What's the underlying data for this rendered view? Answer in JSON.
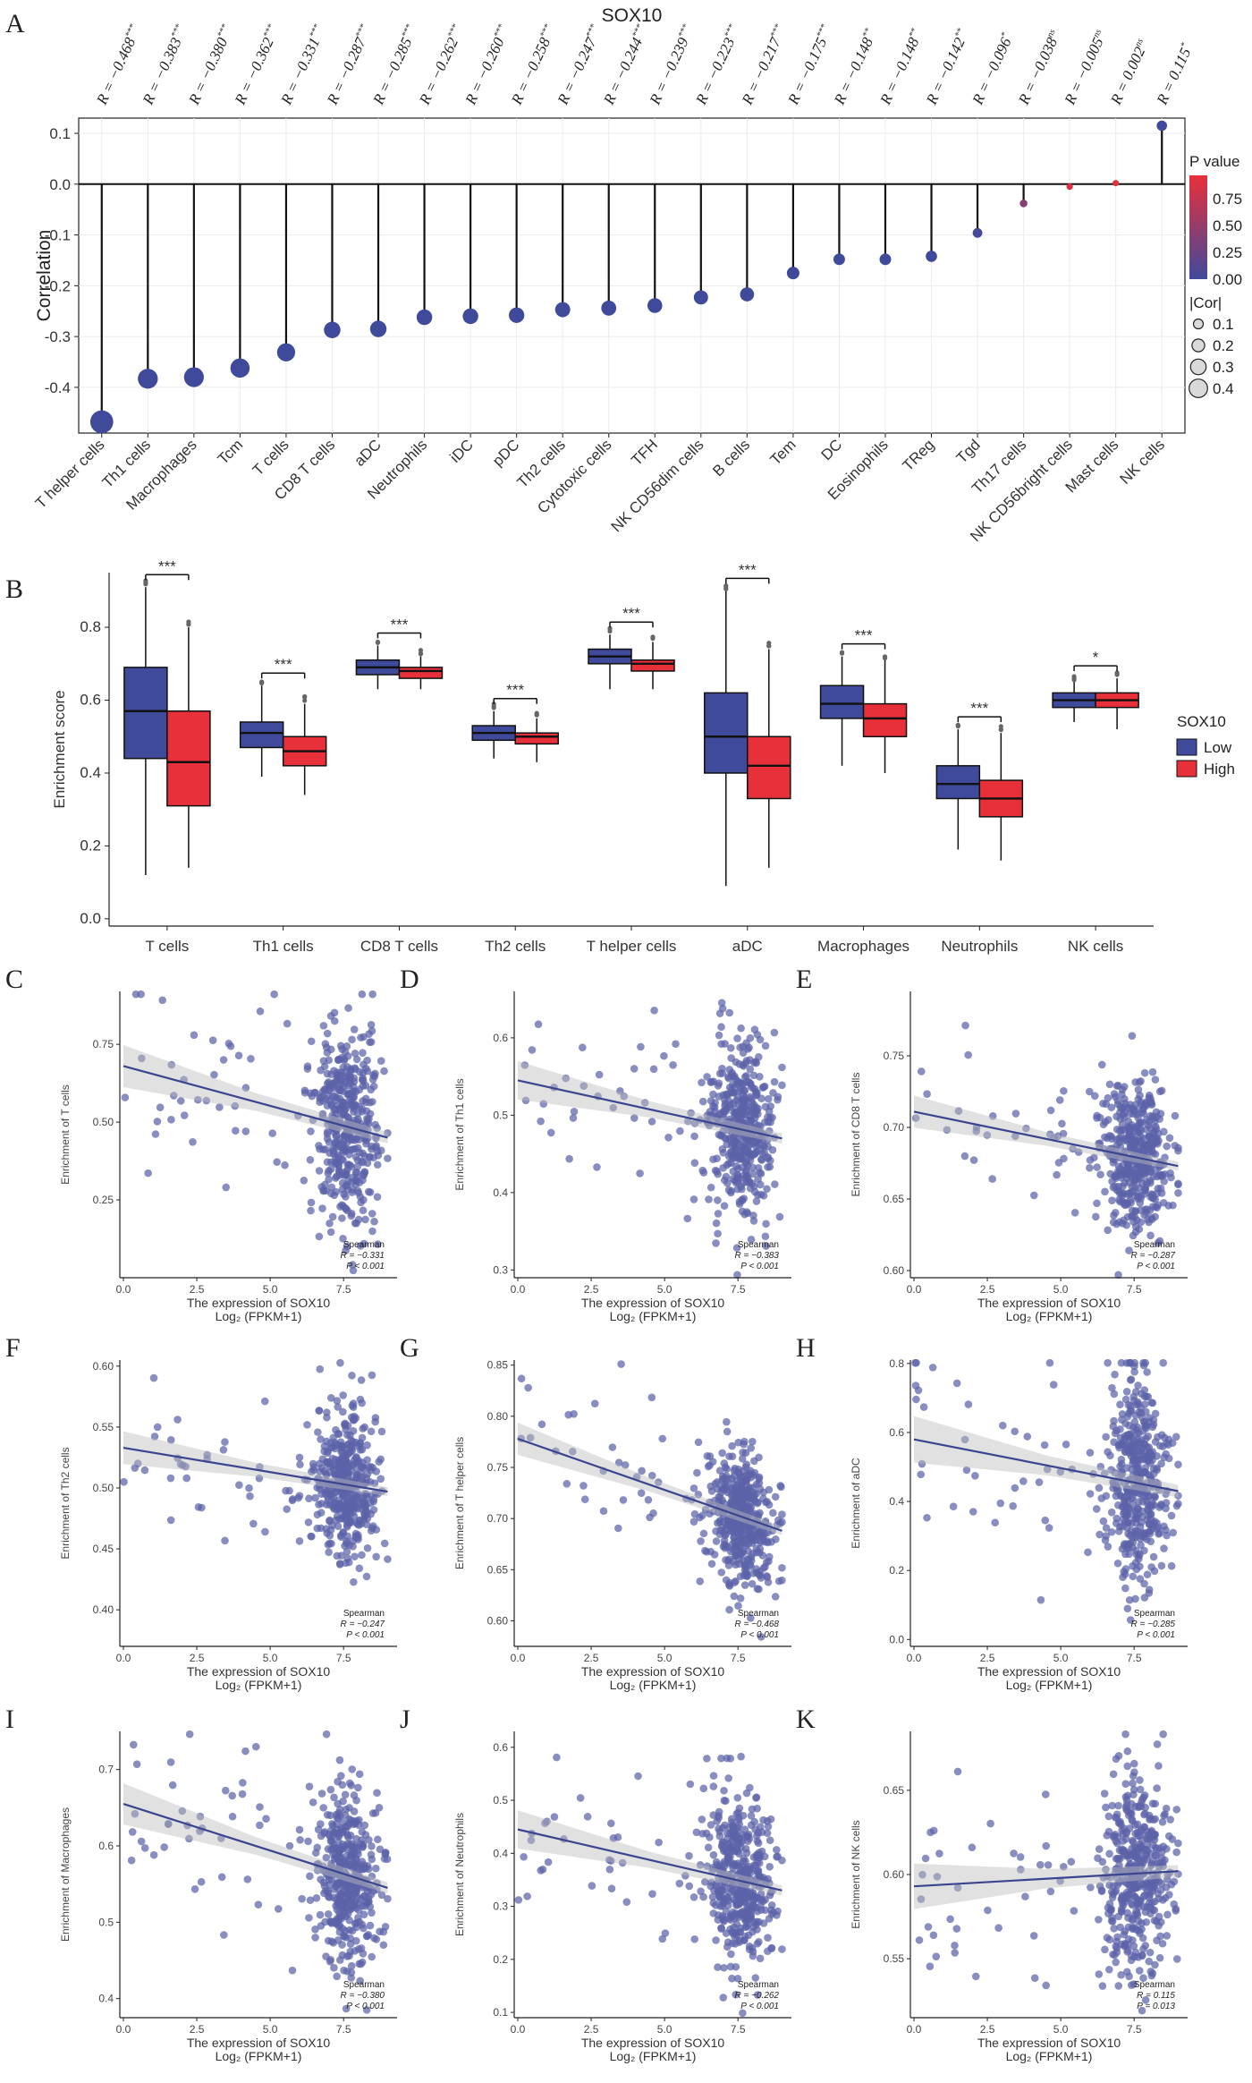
{
  "panels": {
    "A": "A",
    "B": "B",
    "C": "C",
    "D": "D",
    "E": "E",
    "F": "F",
    "G": "G",
    "H": "H",
    "I": "I",
    "J": "J",
    "K": "K"
  },
  "colors": {
    "low": "#3f4a9b",
    "high": "#e8303a",
    "line": "#3a4590",
    "point": "#5c63a8"
  },
  "chart_data": [
    {
      "id": "A",
      "type": "scatter",
      "title": "SOX10",
      "ylabel": "Correlation",
      "ylim": [
        -0.49,
        0.13
      ],
      "yticks": [
        0.1,
        0.0,
        -0.1,
        -0.2,
        -0.3,
        -0.4
      ],
      "ytick_labels": [
        "0.1",
        "0.0",
        "-0.1",
        "-0.2",
        "-0.3",
        "-0.4"
      ],
      "categories": [
        "T helper cells",
        "Th1 cells",
        "Macrophages",
        "Tcm",
        "T cells",
        "CD8 T cells",
        "aDC",
        "Neutrophils",
        "iDC",
        "pDC",
        "Th2 cells",
        "Cytotoxic cells",
        "TFH",
        "NK CD56dim cells",
        "B cells",
        "Tem",
        "DC",
        "Eosinophils",
        "TReg",
        "Tgd",
        "Th17 cells",
        "NK CD56bright cells",
        "Mast cells",
        "NK cells"
      ],
      "values": [
        -0.468,
        -0.383,
        -0.38,
        -0.362,
        -0.331,
        -0.287,
        -0.285,
        -0.262,
        -0.26,
        -0.258,
        -0.247,
        -0.244,
        -0.239,
        -0.223,
        -0.217,
        -0.175,
        -0.148,
        -0.148,
        -0.142,
        -0.096,
        -0.038,
        -0.005,
        0.002,
        0.115
      ],
      "r_labels": [
        "R = −0.468",
        "R = −0.383",
        "R = −0.380",
        "R = −0.362",
        "R = −0.331",
        "R = −0.287",
        "R = −0.285",
        "R = −0.262",
        "R = −0.260",
        "R = −0.258",
        "R = −0.247",
        "R = −0.244",
        "R = −0.239",
        "R = −0.223",
        "R = −0.217",
        "R = −0.175",
        "R = −0.148",
        "R = −0.148",
        "R = −0.142",
        "R = −0.096",
        "R = −0.038",
        "R = −0.005",
        "R = 0.002",
        "R = 0.115"
      ],
      "sig": [
        "***",
        "***",
        "***",
        "***",
        "***",
        "***",
        "***",
        "***",
        "***",
        "***",
        "***",
        "***",
        "***",
        "***",
        "***",
        "***",
        "**",
        "**",
        "**",
        "*",
        "ns",
        "ns",
        "ns",
        "*"
      ],
      "pvalues": [
        0,
        0,
        0,
        0,
        0,
        0,
        0,
        0,
        0,
        0,
        0,
        0,
        0,
        0,
        0,
        0,
        0,
        0,
        0,
        0.03,
        0.42,
        0.9,
        0.97,
        0.01
      ],
      "legend": {
        "pvalue_title": "P value",
        "pvalue_ticks": [
          "0.75",
          "0.50",
          "0.25",
          "0.00"
        ],
        "size_title": "|Cor|",
        "size_ticks": [
          "0.1",
          "0.2",
          "0.3",
          "0.4"
        ]
      }
    },
    {
      "id": "B",
      "type": "box",
      "ylabel": "Enrichment score",
      "ylim": [
        -0.02,
        0.95
      ],
      "yticks": [
        "0.0",
        "0.2",
        "0.4",
        "0.6",
        "0.8"
      ],
      "categories": [
        "T cells",
        "Th1 cells",
        "CD8 T cells",
        "Th2 cells",
        "T helper cells",
        "aDC",
        "Macrophages",
        "Neutrophils",
        "NK cells"
      ],
      "sig": [
        "***",
        "***",
        "***",
        "***",
        "***",
        "***",
        "***",
        "***",
        "*"
      ],
      "legend": {
        "title": "SOX10",
        "low": "Low",
        "high": "High"
      },
      "series": [
        {
          "name": "Low",
          "boxes": [
            [
              0.12,
              0.44,
              0.57,
              0.69,
              0.91
            ],
            [
              0.39,
              0.47,
              0.51,
              0.54,
              0.64
            ],
            [
              0.63,
              0.67,
              0.69,
              0.71,
              0.75
            ],
            [
              0.44,
              0.49,
              0.51,
              0.53,
              0.57
            ],
            [
              0.63,
              0.7,
              0.72,
              0.74,
              0.78
            ],
            [
              0.09,
              0.4,
              0.5,
              0.62,
              0.9
            ],
            [
              0.42,
              0.55,
              0.59,
              0.64,
              0.72
            ],
            [
              0.19,
              0.33,
              0.37,
              0.42,
              0.52
            ],
            [
              0.54,
              0.58,
              0.6,
              0.62,
              0.65
            ]
          ]
        },
        {
          "name": "High",
          "boxes": [
            [
              0.14,
              0.31,
              0.43,
              0.57,
              0.8
            ],
            [
              0.34,
              0.42,
              0.46,
              0.5,
              0.59
            ],
            [
              0.63,
              0.66,
              0.68,
              0.69,
              0.72
            ],
            [
              0.43,
              0.48,
              0.5,
              0.51,
              0.55
            ],
            [
              0.63,
              0.68,
              0.7,
              0.71,
              0.76
            ],
            [
              0.14,
              0.33,
              0.42,
              0.5,
              0.74
            ],
            [
              0.4,
              0.5,
              0.55,
              0.59,
              0.71
            ],
            [
              0.16,
              0.28,
              0.33,
              0.38,
              0.51
            ],
            [
              0.52,
              0.58,
              0.6,
              0.62,
              0.66
            ]
          ]
        }
      ]
    },
    {
      "id": "C",
      "type": "scatter",
      "ylabel": "Enrichment of T cells",
      "xlabel": "The expression of SOX10",
      "xlabel2": "Log₂ (FPKM+1)",
      "xticks": [
        "0.0",
        "2.5",
        "5.0",
        "7.5"
      ],
      "yticks": [
        "0.25",
        "0.50",
        "0.75"
      ],
      "ylim": [
        0.0,
        0.92
      ],
      "yvals": [
        0.25,
        0.5,
        0.75
      ],
      "fit": [
        0.68,
        0.45
      ],
      "center": 0.52,
      "spread": 0.15,
      "stat_title": "Spearman",
      "stat_r": "R = −0.331",
      "stat_p": "P < 0.001"
    },
    {
      "id": "D",
      "type": "scatter",
      "ylabel": "Enrichment of Th1 cells",
      "xlabel": "The expression of SOX10",
      "xlabel2": "Log₂ (FPKM+1)",
      "xticks": [
        "0.0",
        "2.5",
        "5.0",
        "7.5"
      ],
      "yticks": [
        "0.3",
        "0.4",
        "0.5",
        "0.6"
      ],
      "ylim": [
        0.29,
        0.66
      ],
      "yvals": [
        0.3,
        0.4,
        0.5,
        0.6
      ],
      "fit": [
        0.545,
        0.47
      ],
      "center": 0.49,
      "spread": 0.055,
      "stat_title": "Spearman",
      "stat_r": "R = −0.383",
      "stat_p": "P < 0.001"
    },
    {
      "id": "E",
      "type": "scatter",
      "ylabel": "Enrichment of CD8 T cells",
      "xlabel": "The expression of SOX10",
      "xlabel2": "Log₂ (FPKM+1)",
      "xticks": [
        "0.0",
        "2.5",
        "5.0",
        "7.5"
      ],
      "yticks": [
        "0.60",
        "0.65",
        "0.70",
        "0.75"
      ],
      "ylim": [
        0.595,
        0.795
      ],
      "yvals": [
        0.6,
        0.65,
        0.7,
        0.75
      ],
      "fit": [
        0.711,
        0.673
      ],
      "center": 0.683,
      "spread": 0.025,
      "stat_title": "Spearman",
      "stat_r": "R = −0.287",
      "stat_p": "P < 0.001"
    },
    {
      "id": "F",
      "type": "scatter",
      "ylabel": "Enrichment of Th2 cells",
      "xlabel": "The expression of SOX10",
      "xlabel2": "Log₂ (FPKM+1)",
      "xticks": [
        "0.0",
        "2.5",
        "5.0",
        "7.5"
      ],
      "yticks": [
        "0.40",
        "0.45",
        "0.50",
        "0.55",
        "0.60"
      ],
      "ylim": [
        0.37,
        0.605
      ],
      "yvals": [
        0.4,
        0.45,
        0.5,
        0.55,
        0.6
      ],
      "fit": [
        0.533,
        0.497
      ],
      "center": 0.505,
      "spread": 0.03,
      "stat_title": "Spearman",
      "stat_r": "R = −0.247",
      "stat_p": "P < 0.001"
    },
    {
      "id": "G",
      "type": "scatter",
      "ylabel": "Enrichment of T helper cells",
      "xlabel": "The expression of SOX10",
      "xlabel2": "Log₂ (FPKM+1)",
      "xticks": [
        "0.0",
        "2.5",
        "5.0",
        "7.5"
      ],
      "yticks": [
        "0.60",
        "0.65",
        "0.70",
        "0.75",
        "0.80",
        "0.85"
      ],
      "ylim": [
        0.575,
        0.855
      ],
      "yvals": [
        0.6,
        0.65,
        0.7,
        0.75,
        0.8,
        0.85
      ],
      "fit": [
        0.778,
        0.688
      ],
      "center": 0.71,
      "spread": 0.035,
      "stat_title": "Spearman",
      "stat_r": "R = −0.468",
      "stat_p": "P < 0.001"
    },
    {
      "id": "H",
      "type": "scatter",
      "ylabel": "Enrichment of aDC",
      "xlabel": "The expression of SOX10",
      "xlabel2": "Log₂ (FPKM+1)",
      "xticks": [
        "0.0",
        "2.5",
        "5.0",
        "7.5"
      ],
      "yticks": [
        "0.0",
        "0.2",
        "0.4",
        "0.6",
        "0.8"
      ],
      "ylim": [
        -0.02,
        0.81
      ],
      "yvals": [
        0.0,
        0.2,
        0.4,
        0.6,
        0.8
      ],
      "fit": [
        0.58,
        0.43
      ],
      "center": 0.47,
      "spread": 0.15,
      "stat_title": "Spearman",
      "stat_r": "R = −0.285",
      "stat_p": "P < 0.001"
    },
    {
      "id": "I",
      "type": "scatter",
      "ylabel": "Enrichment of Macrophages",
      "xlabel": "The expression of SOX10",
      "xlabel2": "Log₂ (FPKM+1)",
      "xticks": [
        "0.0",
        "2.5",
        "5.0",
        "7.5"
      ],
      "yticks": [
        "0.4",
        "0.5",
        "0.6",
        "0.7"
      ],
      "ylim": [
        0.375,
        0.75
      ],
      "yvals": [
        0.4,
        0.5,
        0.6,
        0.7
      ],
      "fit": [
        0.655,
        0.545
      ],
      "center": 0.58,
      "spread": 0.06,
      "stat_title": "Spearman",
      "stat_r": "R = −0.380",
      "stat_p": "P < 0.001"
    },
    {
      "id": "J",
      "type": "scatter",
      "ylabel": "Enrichment of Neutrophils",
      "xlabel": "The expression of SOX10",
      "xlabel2": "Log₂ (FPKM+1)",
      "xticks": [
        "0.0",
        "2.5",
        "5.0",
        "7.5"
      ],
      "yticks": [
        "0.1",
        "0.2",
        "0.3",
        "0.4",
        "0.5",
        "0.6"
      ],
      "ylim": [
        0.09,
        0.63
      ],
      "yvals": [
        0.1,
        0.2,
        0.3,
        0.4,
        0.5,
        0.6
      ],
      "fit": [
        0.445,
        0.33
      ],
      "center": 0.36,
      "spread": 0.08,
      "stat_title": "Spearman",
      "stat_r": "R = −0.262",
      "stat_p": "P < 0.001"
    },
    {
      "id": "K",
      "type": "scatter",
      "ylabel": "Enrichment of NK cells",
      "xlabel": "The expression of SOX10",
      "xlabel2": "Log₂ (FPKM+1)",
      "xticks": [
        "0.0",
        "2.5",
        "5.0",
        "7.5"
      ],
      "yticks": [
        "0.55",
        "0.60",
        "0.65"
      ],
      "ylim": [
        0.515,
        0.685
      ],
      "yvals": [
        0.55,
        0.6,
        0.65
      ],
      "fit": [
        0.593,
        0.602
      ],
      "center": 0.6,
      "spread": 0.03,
      "stat_title": "Spearman",
      "stat_r": "R = 0.115",
      "stat_p": "P = 0.013"
    }
  ]
}
